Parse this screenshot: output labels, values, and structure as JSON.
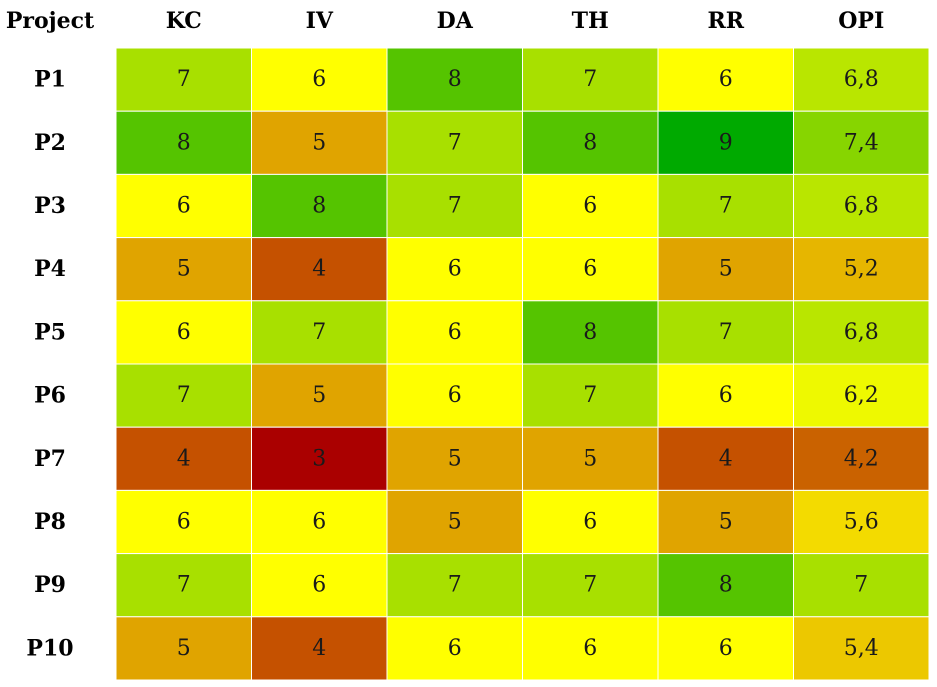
{
  "chart_data": {
    "type": "heatmap",
    "corner_label": "Project",
    "columns": [
      "KC",
      "IV",
      "DA",
      "TH",
      "RR",
      "OPI"
    ],
    "rows": [
      "P1",
      "P2",
      "P3",
      "P4",
      "P5",
      "P6",
      "P7",
      "P8",
      "P9",
      "P10"
    ],
    "values": [
      [
        7,
        6,
        8,
        7,
        6,
        6.8
      ],
      [
        8,
        5,
        7,
        8,
        9,
        7.4
      ],
      [
        6,
        8,
        7,
        6,
        7,
        6.8
      ],
      [
        5,
        4,
        6,
        6,
        5,
        5.2
      ],
      [
        6,
        7,
        6,
        8,
        7,
        6.8
      ],
      [
        7,
        5,
        6,
        7,
        6,
        6.2
      ],
      [
        4,
        3,
        5,
        5,
        4,
        4.2
      ],
      [
        6,
        6,
        5,
        6,
        5,
        5.6
      ],
      [
        7,
        6,
        7,
        7,
        8,
        7
      ],
      [
        5,
        4,
        6,
        6,
        6,
        5.4
      ]
    ],
    "display": [
      [
        "7",
        "6",
        "8",
        "7",
        "6",
        "6,8"
      ],
      [
        "8",
        "5",
        "7",
        "8",
        "9",
        "7,4"
      ],
      [
        "6",
        "8",
        "7",
        "6",
        "7",
        "6,8"
      ],
      [
        "5",
        "4",
        "6",
        "6",
        "5",
        "5,2"
      ],
      [
        "6",
        "7",
        "6",
        "8",
        "7",
        "6,8"
      ],
      [
        "7",
        "5",
        "6",
        "7",
        "6",
        "6,2"
      ],
      [
        "4",
        "3",
        "5",
        "5",
        "4",
        "4,2"
      ],
      [
        "6",
        "6",
        "5",
        "6",
        "5",
        "5,6"
      ],
      [
        "7",
        "6",
        "7",
        "7",
        "8",
        "7"
      ],
      [
        "5",
        "4",
        "6",
        "6",
        "6",
        "5,4"
      ]
    ],
    "color_scale": [
      {
        "value": 3,
        "color": "#aa0000"
      },
      {
        "value": 4,
        "color": "#c55100"
      },
      {
        "value": 5,
        "color": "#e0a400"
      },
      {
        "value": 6,
        "color": "#ffff00"
      },
      {
        "value": 7,
        "color": "#a8e000"
      },
      {
        "value": 8,
        "color": "#55c400"
      },
      {
        "value": 9,
        "color": "#00aa00"
      }
    ],
    "grid": false,
    "legend": "none"
  }
}
